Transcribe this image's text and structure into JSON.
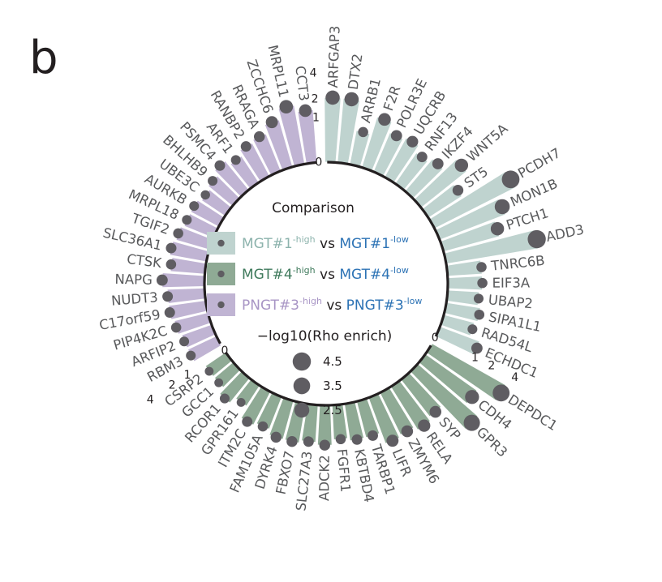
{
  "panel_label": "b",
  "colors": {
    "g1_bar": "#bfd3cf",
    "g2_bar": "#8faa95",
    "g3_bar": "#c0b4d3",
    "dot": "#5f5d62",
    "axis": "#231f20",
    "g1_label": "#8db3ad",
    "g2_label": "#3f7a5c",
    "g3_label": "#a895c5",
    "low_label": "#2d73b5",
    "gene_text": "#58595b"
  },
  "chart_data": {
    "type": "circular-bar",
    "value_label": "−log10(Rho enrich)",
    "legend_title": "Comparison",
    "legend": [
      {
        "key": "g1",
        "high": "MGT#1",
        "high_sup": "-high",
        "vs": "vs",
        "low": "MGT#1",
        "low_sup": "-low"
      },
      {
        "key": "g2",
        "high": "MGT#4",
        "high_sup": "-high",
        "vs": "vs",
        "low": "MGT#4",
        "low_sup": "-low"
      },
      {
        "key": "g3",
        "high": "PNGT#3",
        "high_sup": "-high",
        "vs": "vs",
        "low": "PNGT#3",
        "low_sup": "-low"
      }
    ],
    "size_legend": [
      4.5,
      3.5,
      2.5
    ],
    "groups": [
      {
        "key": "g1",
        "ticks": [
          "0",
          "1",
          "2",
          "4"
        ],
        "genes": [
          "ARFGAP3",
          "DTX2",
          "ARRB1",
          "F2R",
          "POLR3E",
          "UQCRB",
          "RNF13",
          "IKZF4",
          "WNT5A",
          "ST5",
          "PCDH7",
          "MON1B",
          "PTCH1",
          "ADD3",
          "TNRC6B",
          "EIF3A",
          "UBAP2",
          "SIPA1L1",
          "RAD54L",
          "ECHDC1"
        ],
        "values": [
          2.1,
          2.1,
          0.6,
          1.4,
          0.9,
          1.0,
          0.7,
          0.9,
          1.7,
          0.8,
          4.1,
          2.5,
          1.7,
          4.4,
          0.6,
          0.6,
          0.5,
          0.6,
          0.5,
          0.9
        ]
      },
      {
        "key": "g2",
        "ticks": [
          "0",
          "1",
          "2",
          "4"
        ],
        "genes": [
          "DEPDC1",
          "CDH4",
          "GPR3",
          "SYP",
          "RELA",
          "ZMYM6",
          "LIFR",
          "TARBP1",
          "KBTBD4",
          "FGFR1",
          "ADCK2",
          "SLC27A3",
          "FBXO7",
          "DYRK4",
          "FAM105A",
          "ITM2C",
          "GPR161",
          "RCOR1",
          "GCC1",
          "CSRP2"
        ],
        "values": [
          3.6,
          2.0,
          3.2,
          1.1,
          1.3,
          1.1,
          1.2,
          0.7,
          0.7,
          0.6,
          0.8,
          0.7,
          0.8,
          0.8,
          0.6,
          0.7,
          0.3,
          0.5,
          0.3,
          0.3
        ]
      },
      {
        "key": "g3",
        "ticks": [
          "0",
          "1",
          "2",
          "4"
        ],
        "genes": [
          "RBM3",
          "ARFIP2",
          "PIP4K2C",
          "C17orf59",
          "NUDT3",
          "NAPG",
          "CTSK",
          "SLC36A1",
          "TGIF2",
          "MRPL18",
          "AURKB",
          "UBE3C",
          "BHLHB9",
          "PSMC4",
          "ARF1",
          "RANBP2",
          "RRAGA",
          "ZCCHC6",
          "MRPL11",
          "CCT3"
        ],
        "values": [
          0.5,
          0.5,
          0.6,
          0.7,
          0.7,
          0.9,
          0.6,
          0.7,
          0.6,
          0.5,
          0.5,
          0.4,
          0.5,
          0.7,
          0.5,
          0.7,
          0.8,
          1.2,
          1.8,
          1.4
        ]
      }
    ]
  }
}
